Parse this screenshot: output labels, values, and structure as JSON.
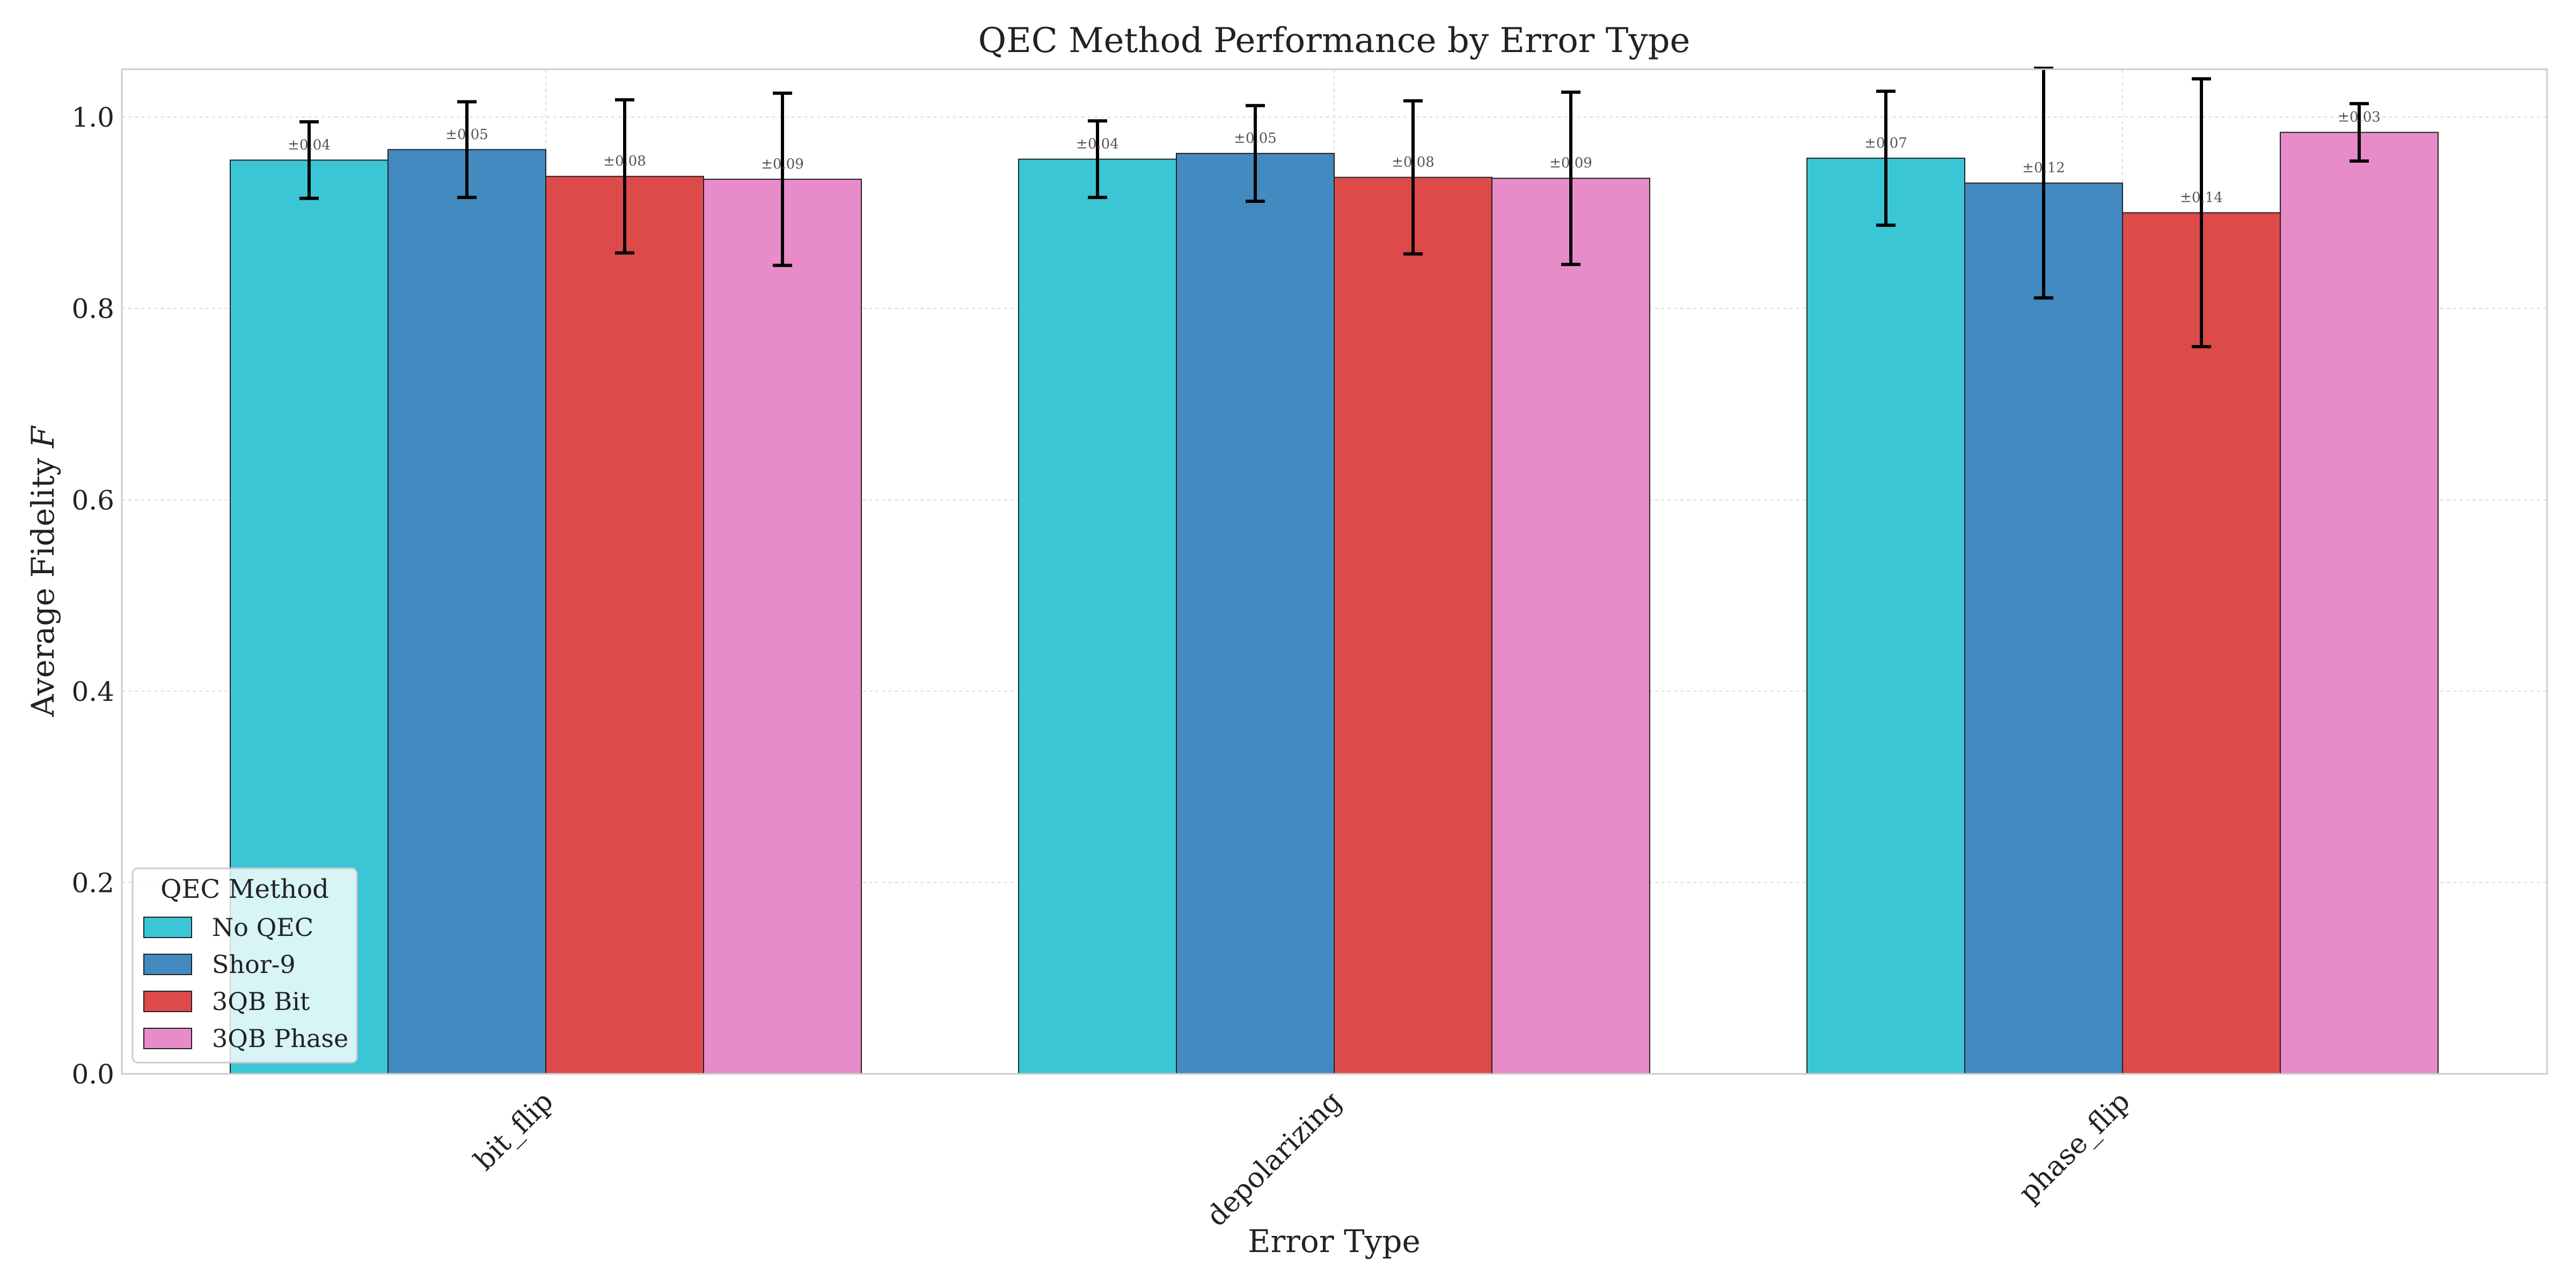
{
  "chart_data": {
    "type": "bar",
    "title": "QEC Method Performance by Error Type",
    "xlabel": "Error Type",
    "ylabel_main": "Average Fidelity ",
    "ylabel_symbol": "F",
    "categories": [
      "bit_flip",
      "depolarizing",
      "phase_flip"
    ],
    "ylim": [
      0,
      1.05
    ],
    "yticks": [
      "0.0",
      "0.2",
      "0.4",
      "0.6",
      "0.8",
      "1.0"
    ],
    "grid": true,
    "legend": {
      "title": "QEC Method",
      "placement": "lower-left"
    },
    "series": [
      {
        "name": "No QEC",
        "color": "#3bc6d6",
        "values": [
          0.955,
          0.956,
          0.957
        ],
        "errors": [
          0.04,
          0.04,
          0.07
        ],
        "error_labels": [
          "±0.04",
          "±0.04",
          "±0.07"
        ]
      },
      {
        "name": "Shor-9",
        "color": "#428abf",
        "values": [
          0.966,
          0.962,
          0.931
        ],
        "errors": [
          0.05,
          0.05,
          0.12
        ],
        "error_labels": [
          "±0.05",
          "±0.05",
          "±0.12"
        ]
      },
      {
        "name": "3QB Bit",
        "color": "#dd4a4a",
        "values": [
          0.938,
          0.937,
          0.9
        ],
        "errors": [
          0.08,
          0.08,
          0.14
        ],
        "error_labels": [
          "±0.08",
          "±0.08",
          "±0.14"
        ]
      },
      {
        "name": "3QB Phase",
        "color": "#e78cc9",
        "values": [
          0.935,
          0.936,
          0.984
        ],
        "errors": [
          0.09,
          0.09,
          0.03
        ],
        "error_labels": [
          "±0.09",
          "±0.09",
          "±0.03"
        ]
      }
    ]
  }
}
